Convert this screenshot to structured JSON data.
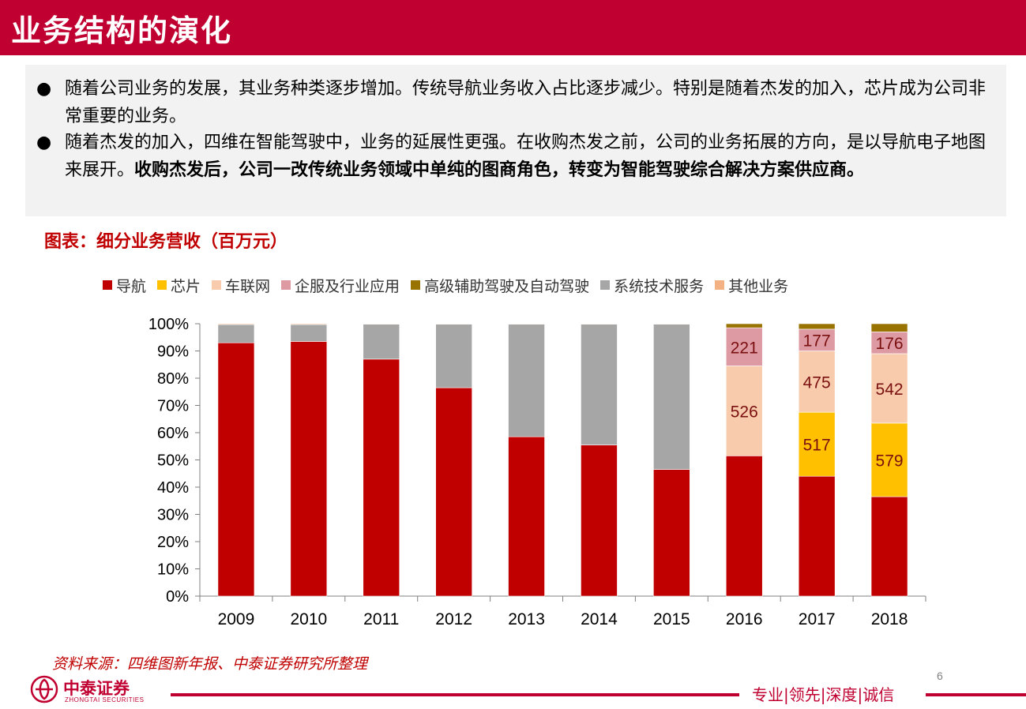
{
  "page": {
    "title": "业务结构的演化",
    "bullets": [
      {
        "text": "随着公司业务的发展，其业务种类逐步增加。传统导航业务收入占比逐步减少。特别是随着杰发的加入，芯片成为公司非常重要的业务。",
        "bold": ""
      },
      {
        "text": "随着杰发的加入，四维在智能驾驶中，业务的延展性更强。在收购杰发之前，公司的业务拓展的方向，是以导航电子地图来展开。",
        "bold": "收购杰发后，公司一改传统业务领域中单纯的图商角色，转变为智能驾驶综合解决方案供应商。"
      }
    ],
    "bullet_symbol": "●",
    "chart_caption": "图表：细分业务营收（百万元）",
    "source": "资料来源：四维图新年报、中泰证券研究所整理",
    "page_number": "6",
    "footer": {
      "logo_cn": "中泰证券",
      "logo_en": "ZHONGTAI SECURITIES",
      "slogan": "专业|领先|深度|诚信"
    },
    "colors": {
      "brand": "#c00030",
      "caption": "#c00000",
      "box_bg": "#f2f2f2"
    }
  },
  "chart_data": {
    "type": "bar",
    "stacked": true,
    "percent": true,
    "categories": [
      "2009",
      "2010",
      "2011",
      "2012",
      "2013",
      "2014",
      "2015",
      "2016",
      "2017",
      "2018"
    ],
    "series": [
      {
        "name": "导航",
        "color": "#c00000",
        "values": [
          93,
          93.5,
          87,
          76.5,
          58.5,
          55.5,
          46.5,
          51.5,
          44,
          36.5
        ],
        "labels": [
          "",
          "",
          "",
          "",
          "",
          "",
          "",
          "",
          "",
          ""
        ]
      },
      {
        "name": "芯片",
        "color": "#ffc000",
        "values": [
          0,
          0,
          0,
          0,
          0,
          0,
          0,
          0,
          23.5,
          27
        ],
        "labels": [
          "",
          "",
          "",
          "",
          "",
          "",
          "",
          "",
          "517",
          "579"
        ]
      },
      {
        "name": "车联网",
        "color": "#f8cbad",
        "values": [
          0,
          0,
          0,
          0,
          0,
          0,
          0,
          33,
          22.5,
          25.5
        ],
        "labels": [
          "",
          "",
          "",
          "",
          "",
          "",
          "",
          "526",
          "475",
          "542"
        ]
      },
      {
        "name": "企服及行业应用",
        "color": "#dd9aa2",
        "values": [
          0,
          0,
          0,
          0,
          0,
          0,
          0,
          14,
          8,
          8
        ],
        "labels": [
          "",
          "",
          "",
          "",
          "",
          "",
          "",
          "221",
          "177",
          "176"
        ]
      },
      {
        "name": "高级辅助驾驶及自动驾驶",
        "color": "#997300",
        "values": [
          0,
          0,
          0,
          0,
          0,
          0,
          0,
          1.5,
          2,
          3
        ],
        "labels": [
          "",
          "",
          "",
          "",
          "",
          "",
          "",
          "",
          "",
          ""
        ]
      },
      {
        "name": "系统技术服务",
        "color": "#a6a6a6",
        "values": [
          6.7,
          6.2,
          12.8,
          23.3,
          41.3,
          44.3,
          53.3,
          0,
          0,
          0
        ],
        "labels": [
          "",
          "",
          "",
          "",
          "",
          "",
          "",
          "",
          "",
          ""
        ]
      },
      {
        "name": "其他业务",
        "color": "#f4b183",
        "values": [
          0.3,
          0.3,
          0.2,
          0.2,
          0.2,
          0.2,
          0.2,
          0,
          0,
          0
        ],
        "labels": [
          "",
          "",
          "",
          "",
          "",
          "",
          "",
          "",
          "",
          ""
        ]
      }
    ],
    "y_ticks": [
      "0%",
      "10%",
      "20%",
      "30%",
      "40%",
      "50%",
      "60%",
      "70%",
      "80%",
      "90%",
      "100%"
    ],
    "ylim": [
      0,
      100
    ],
    "grid": false,
    "legend_position": "top"
  }
}
